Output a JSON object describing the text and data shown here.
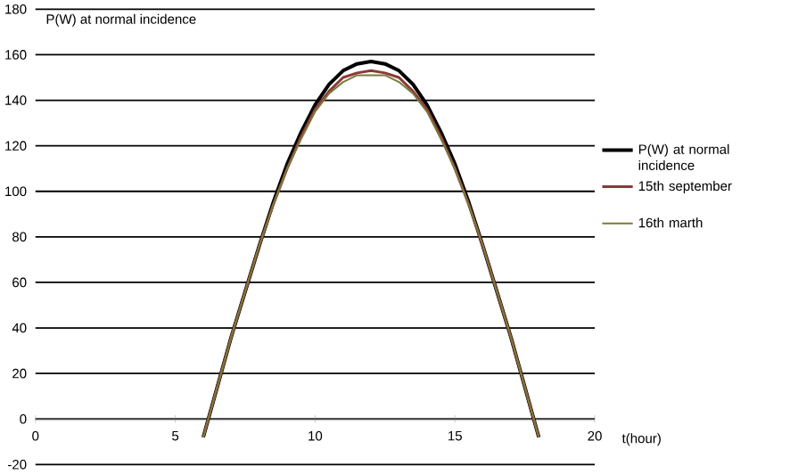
{
  "chart_data": {
    "type": "line",
    "ylabel": "P(W)  at normal incidence",
    "xlabel": "t(hour)",
    "xlim": [
      0,
      20
    ],
    "xticks": [
      0,
      5,
      10,
      15,
      20
    ],
    "ylim": [
      -20,
      180
    ],
    "yticks": [
      -20,
      0,
      20,
      40,
      60,
      80,
      100,
      120,
      140,
      160,
      180
    ],
    "grid": "y",
    "legend": "right",
    "line_style": "solid",
    "marker": "none",
    "series": [
      {
        "name": "P(W)  at normal incidence",
        "color": "#000000",
        "x": [
          6,
          6.5,
          7,
          7.5,
          8,
          8.5,
          9,
          9.5,
          10,
          10.5,
          11,
          11.5,
          12,
          12.5,
          13,
          13.5,
          14,
          14.5,
          15,
          15.5,
          16,
          16.5,
          17,
          17.5,
          18
        ],
        "values": [
          -8,
          14,
          36,
          56,
          76,
          95,
          112,
          126,
          138,
          147,
          153,
          156,
          157,
          156,
          153,
          147,
          138,
          126,
          112,
          95,
          76,
          56,
          36,
          14,
          -8
        ]
      },
      {
        "name": "15th september",
        "color": "#8b3a3a",
        "x": [
          6,
          6.5,
          7,
          7.5,
          8,
          8.5,
          9,
          9.5,
          10,
          10.5,
          11,
          11.5,
          12,
          12.5,
          13,
          13.5,
          14,
          14.5,
          15,
          15.5,
          16,
          16.5,
          17,
          17.5,
          18
        ],
        "values": [
          -8,
          14,
          36,
          56,
          76,
          94,
          110,
          124,
          136,
          144,
          150,
          152,
          153,
          152,
          150,
          144,
          136,
          124,
          110,
          94,
          76,
          56,
          36,
          14,
          -8
        ]
      },
      {
        "name": "16th marth",
        "color": "#7a7a3a",
        "x": [
          6,
          6.5,
          7,
          7.5,
          8,
          8.5,
          9,
          9.5,
          10,
          10.5,
          11,
          11.5,
          12,
          12.5,
          13,
          13.5,
          14,
          14.5,
          15,
          15.5,
          16,
          16.5,
          17,
          17.5,
          18
        ],
        "values": [
          -8,
          14,
          36,
          56,
          76,
          94,
          110,
          123,
          135,
          143,
          148,
          151,
          151,
          151,
          148,
          143,
          135,
          123,
          110,
          94,
          76,
          56,
          36,
          14,
          -8
        ]
      }
    ]
  }
}
